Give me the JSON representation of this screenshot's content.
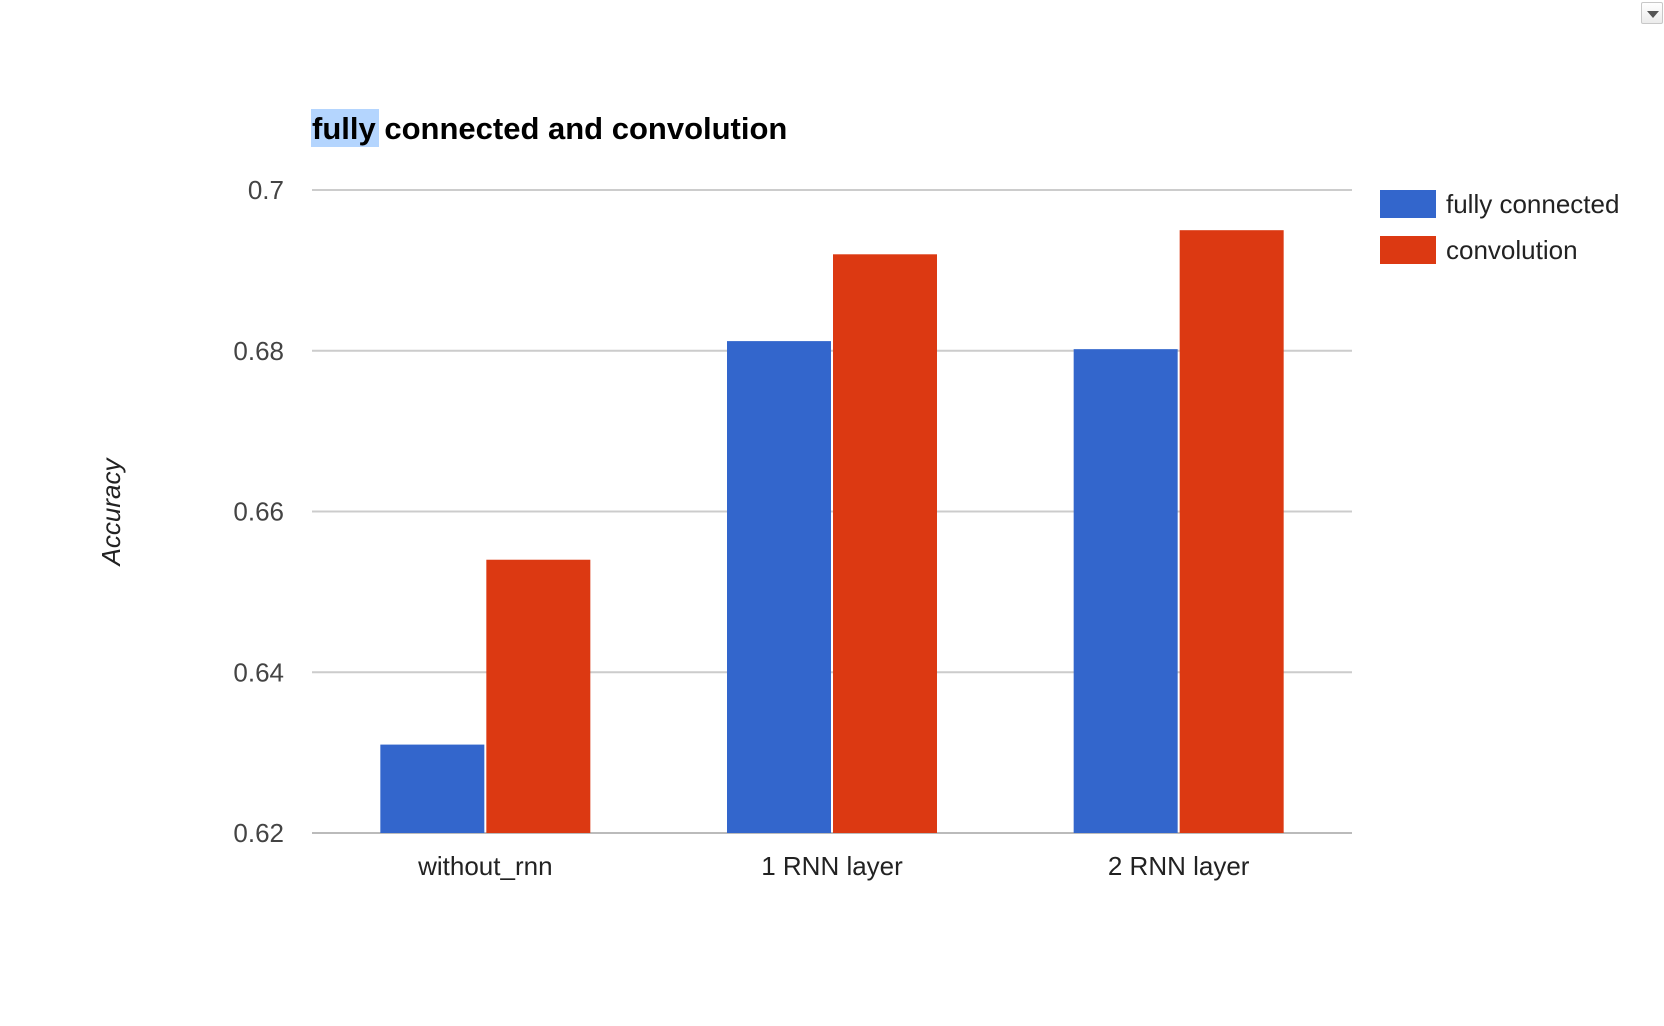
{
  "chart_data": {
    "type": "bar",
    "title_highlight": "fully",
    "title_rest": " connected and convolution",
    "ylabel": "Accuracy",
    "xlabel": "",
    "ylim": [
      0.62,
      0.7
    ],
    "yticks": [
      "0.62",
      "0.64",
      "0.66",
      "0.68",
      "0.7"
    ],
    "ytick_values": [
      0.62,
      0.64,
      0.66,
      0.68,
      0.7
    ],
    "categories": [
      "without_rnn",
      "1 RNN layer",
      "2 RNN layer"
    ],
    "series": [
      {
        "name": "fully connected",
        "color": "#3366cc",
        "values": [
          0.631,
          0.6812,
          0.6802
        ]
      },
      {
        "name": "convolution",
        "color": "#dc3912",
        "values": [
          0.654,
          0.692,
          0.695
        ]
      }
    ],
    "grid": true,
    "legend_position": "right"
  },
  "menu_icon": "dropdown-arrow-icon"
}
